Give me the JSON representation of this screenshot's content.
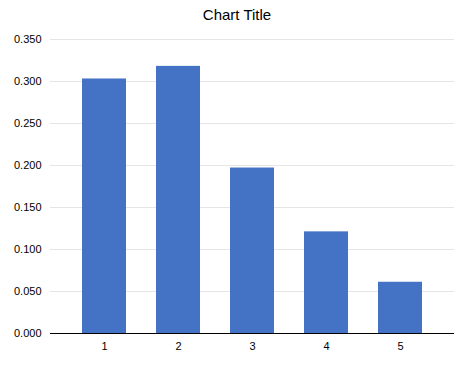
{
  "chart_data": {
    "type": "bar",
    "title": "Chart Title",
    "categories": [
      "1",
      "2",
      "3",
      "4",
      "5"
    ],
    "values": [
      0.303,
      0.318,
      0.197,
      0.121,
      0.061
    ],
    "color": "#4472C4",
    "ylim": [
      0,
      0.35
    ],
    "yticks": [
      {
        "value": 0,
        "label": "0.000"
      },
      {
        "value": 0.05,
        "label": "0.050"
      },
      {
        "value": 0.1,
        "label": "0.100"
      },
      {
        "value": 0.15,
        "label": "0.150"
      },
      {
        "value": 0.2,
        "label": "0.200"
      },
      {
        "value": 0.25,
        "label": "0.250"
      },
      {
        "value": 0.3,
        "label": "0.300"
      },
      {
        "value": 0.35,
        "label": "0.350"
      }
    ],
    "grid": true
  }
}
